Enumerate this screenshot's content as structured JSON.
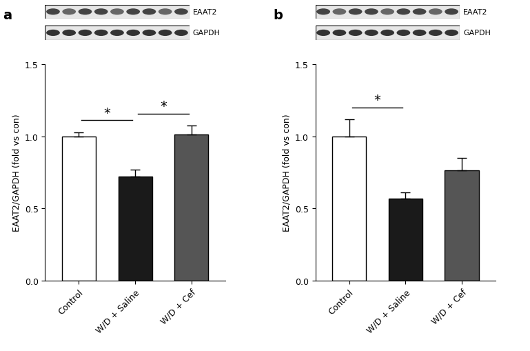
{
  "chart_data": [
    {
      "type": "bar",
      "panel": "a",
      "blots": [
        "EAAT2",
        "GAPDH"
      ],
      "categories": [
        "Control",
        "W/D + Saline",
        "W/D + Cef"
      ],
      "values": [
        1.0,
        0.72,
        1.015
      ],
      "error": [
        0.03,
        0.05,
        0.06
      ],
      "colors": [
        "#ffffff",
        "#1a1a1a",
        "#555555"
      ],
      "y_label": "EAAT2/GAPDH (fold vs con)",
      "ylim": [
        0,
        1.5
      ],
      "yticks": [
        {
          "value": 0,
          "label": "0.0"
        },
        {
          "value": 0.5,
          "label": "0.5"
        },
        {
          "value": 1,
          "label": "1.0"
        },
        {
          "value": 1.5,
          "label": "1.5"
        }
      ],
      "significance": [
        {
          "from": 0,
          "to": 1,
          "label": "*"
        },
        {
          "from": 1,
          "to": 2,
          "label": "*"
        }
      ]
    },
    {
      "type": "bar",
      "panel": "b",
      "blots": [
        "EAAT2",
        "GAPDH"
      ],
      "categories": [
        "Control",
        "W/D + Saline",
        "W/D + Cef"
      ],
      "values": [
        1.0,
        0.57,
        0.765
      ],
      "error": [
        0.12,
        0.04,
        0.085
      ],
      "colors": [
        "#ffffff",
        "#1a1a1a",
        "#555555"
      ],
      "y_label": "EAAT2/GAPDH (fold vs con)",
      "ylim": [
        0,
        1.5
      ],
      "yticks": [
        {
          "value": 0,
          "label": "0.0"
        },
        {
          "value": 0.5,
          "label": "0.5"
        },
        {
          "value": 1,
          "label": "1.0"
        },
        {
          "value": 1.5,
          "label": "1.5"
        }
      ],
      "significance": [
        {
          "from": 0,
          "to": 1,
          "label": "*"
        }
      ]
    }
  ]
}
